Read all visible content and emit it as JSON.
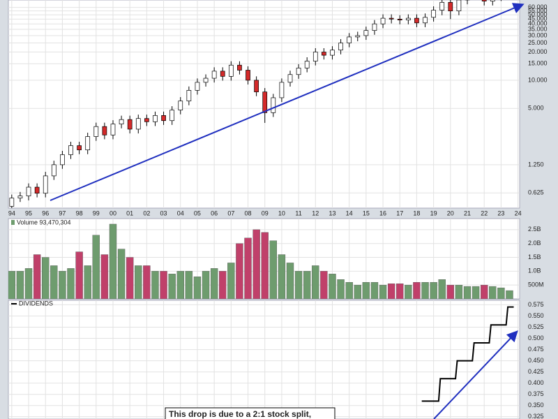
{
  "chart_data": [
    {
      "type": "candlestick",
      "log_scale": true,
      "grid": true,
      "up_color": "#ffffff",
      "down_color": "#d42a2a",
      "x": [
        1994.0,
        1994.5,
        1995.0,
        1995.5,
        1996.0,
        1996.5,
        1997.0,
        1997.5,
        1998.0,
        1998.5,
        1999.0,
        1999.5,
        2000.0,
        2000.5,
        2001.0,
        2001.5,
        2002.0,
        2002.5,
        2003.0,
        2003.5,
        2004.0,
        2004.5,
        2005.0,
        2005.5,
        2006.0,
        2006.5,
        2007.0,
        2007.5,
        2008.0,
        2008.5,
        2009.0,
        2009.5,
        2010.0,
        2010.5,
        2011.0,
        2011.5,
        2012.0,
        2012.5,
        2013.0,
        2013.5,
        2014.0,
        2014.5,
        2015.0,
        2015.5,
        2016.0,
        2016.5,
        2017.0,
        2017.5,
        2018.0,
        2018.5,
        2019.0,
        2019.5,
        2020.0,
        2020.5,
        2021.0,
        2021.5,
        2022.0,
        2022.5,
        2023.0,
        2023.5
      ],
      "open": [
        0.45,
        0.55,
        0.58,
        0.72,
        0.62,
        0.95,
        1.25,
        1.6,
        2.0,
        1.8,
        2.5,
        3.2,
        2.6,
        3.4,
        3.8,
        3.0,
        3.9,
        3.6,
        4.2,
        3.7,
        4.8,
        6.0,
        7.8,
        9.5,
        10.5,
        12.5,
        11.0,
        14.5,
        12.8,
        10.0,
        7.5,
        4.5,
        6.5,
        9.5,
        11.5,
        13.5,
        16.0,
        20.0,
        18.5,
        21.0,
        25.0,
        29.0,
        30.0,
        34.0,
        40.0,
        46.0,
        45.0,
        44.0,
        46.0,
        41.0,
        47.0,
        56.0,
        68.0,
        55.0,
        72.0,
        80,
        85,
        70,
        78,
        85
      ],
      "high": [
        0.6,
        0.64,
        0.79,
        0.79,
        1.05,
        1.38,
        1.76,
        2.2,
        2.2,
        2.75,
        3.52,
        3.52,
        3.74,
        4.18,
        4.18,
        4.29,
        4.29,
        4.62,
        4.62,
        5.28,
        6.6,
        8.58,
        10.45,
        11.55,
        13.75,
        13.75,
        15.95,
        15.95,
        14.08,
        11.0,
        8.25,
        7.15,
        10.45,
        12.65,
        14.85,
        17.6,
        22.0,
        22.0,
        23.1,
        27.5,
        31.9,
        33.0,
        37.4,
        44.0,
        50.6,
        50.6,
        49.5,
        50.6,
        50.6,
        51.7,
        61.6,
        74.8,
        74.8,
        79.2,
        88,
        93.5,
        93.5,
        85.8,
        93.5,
        99
      ],
      "low": [
        0.41,
        0.5,
        0.52,
        0.56,
        0.56,
        0.86,
        1.13,
        1.44,
        1.62,
        1.62,
        2.25,
        2.34,
        2.34,
        3.06,
        2.7,
        2.7,
        3.24,
        3.24,
        3.33,
        3.33,
        4.32,
        5.4,
        7.02,
        8.55,
        9.45,
        9.9,
        9.9,
        11.52,
        9.0,
        6.75,
        3.5,
        4.05,
        5.85,
        8.55,
        10.35,
        12.15,
        14.4,
        16.65,
        16.65,
        18.9,
        22.5,
        26.1,
        27.0,
        30.6,
        36.0,
        40.5,
        39.6,
        39.6,
        36.9,
        36.9,
        42.3,
        49.5,
        45,
        49.5,
        64.8,
        72,
        63,
        63,
        70.2,
        76.5
      ],
      "close": [
        0.55,
        0.58,
        0.72,
        0.62,
        0.95,
        1.25,
        1.6,
        2.0,
        1.8,
        2.5,
        3.2,
        2.6,
        3.4,
        3.8,
        3.0,
        3.9,
        3.6,
        4.2,
        3.7,
        4.8,
        6.0,
        7.8,
        9.5,
        10.5,
        12.5,
        11.0,
        14.5,
        12.8,
        10.0,
        7.5,
        4.5,
        6.5,
        9.5,
        11.5,
        13.5,
        16.0,
        20.0,
        18.5,
        21.0,
        25.0,
        29.0,
        30.0,
        34.0,
        40.0,
        46.0,
        45.0,
        44.0,
        46.0,
        41.0,
        47.0,
        56.0,
        68.0,
        55.0,
        72.0,
        80,
        85,
        70,
        78,
        85,
        90
      ],
      "xlim": [
        1993.8,
        2024.1
      ],
      "ylim": [
        0.43,
        72
      ],
      "xticks": [
        {
          "value": 1994,
          "label": "94"
        },
        {
          "value": 1995,
          "label": "95"
        },
        {
          "value": 1996,
          "label": "96"
        },
        {
          "value": 1997,
          "label": "97"
        },
        {
          "value": 1998,
          "label": "98"
        },
        {
          "value": 1999,
          "label": "99"
        },
        {
          "value": 2000,
          "label": "00"
        },
        {
          "value": 2001,
          "label": "01"
        },
        {
          "value": 2002,
          "label": "02"
        },
        {
          "value": 2003,
          "label": "03"
        },
        {
          "value": 2004,
          "label": "04"
        },
        {
          "value": 2005,
          "label": "05"
        },
        {
          "value": 2006,
          "label": "06"
        },
        {
          "value": 2007,
          "label": "07"
        },
        {
          "value": 2008,
          "label": "08"
        },
        {
          "value": 2009,
          "label": "09"
        },
        {
          "value": 2010,
          "label": "10"
        },
        {
          "value": 2011,
          "label": "11"
        },
        {
          "value": 2012,
          "label": "12"
        },
        {
          "value": 2013,
          "label": "13"
        },
        {
          "value": 2014,
          "label": "14"
        },
        {
          "value": 2015,
          "label": "15"
        },
        {
          "value": 2016,
          "label": "16"
        },
        {
          "value": 2017,
          "label": "17"
        },
        {
          "value": 2018,
          "label": "18"
        },
        {
          "value": 2019,
          "label": "19"
        },
        {
          "value": 2020,
          "label": "20"
        },
        {
          "value": 2021,
          "label": "21"
        },
        {
          "value": 2022,
          "label": "22"
        },
        {
          "value": 2023,
          "label": "23"
        },
        {
          "value": 2024,
          "label": "24"
        }
      ],
      "yticks": [
        0.625,
        {
          "value": 1.25,
          "label": "1.250"
        },
        {
          "value": 5,
          "label": "5.000"
        },
        {
          "value": 10,
          "label": "10.000"
        },
        {
          "value": 15,
          "label": "15.000"
        },
        {
          "value": 20,
          "label": "20.000"
        },
        {
          "value": 25,
          "label": "25.000"
        },
        {
          "value": 30,
          "label": "30.000"
        },
        {
          "value": 35,
          "label": "35.000"
        },
        {
          "value": 40,
          "label": "40.000"
        },
        {
          "value": 45,
          "label": "45.000"
        },
        {
          "value": 50,
          "label": "50.000"
        },
        {
          "value": 55,
          "label": "55.000"
        },
        {
          "value": 60,
          "label": "60.000"
        }
      ]
    },
    {
      "type": "bar",
      "title": "Volume 93,470,304",
      "grid": true,
      "up_color": "#6e9c6e",
      "down_color": "#c0406a",
      "x": [
        1994.0,
        1994.5,
        1995.0,
        1995.5,
        1996.0,
        1996.5,
        1997.0,
        1997.5,
        1998.0,
        1998.5,
        1999.0,
        1999.5,
        2000.0,
        2000.5,
        2001.0,
        2001.5,
        2002.0,
        2002.5,
        2003.0,
        2003.5,
        2004.0,
        2004.5,
        2005.0,
        2005.5,
        2006.0,
        2006.5,
        2007.0,
        2007.5,
        2008.0,
        2008.5,
        2009.0,
        2009.5,
        2010.0,
        2010.5,
        2011.0,
        2011.5,
        2012.0,
        2012.5,
        2013.0,
        2013.5,
        2014.0,
        2014.5,
        2015.0,
        2015.5,
        2016.0,
        2016.5,
        2017.0,
        2017.5,
        2018.0,
        2018.5,
        2019.0,
        2019.5,
        2020.0,
        2020.5,
        2021.0,
        2021.5,
        2022.0,
        2022.5,
        2023.0,
        2023.5
      ],
      "values": [
        1000000000,
        1000000000,
        1100000000,
        1600000000,
        1500000000,
        1200000000,
        1000000000,
        1100000000,
        1700000000,
        1200000000,
        2300000000,
        1600000000,
        2700000000,
        1800000000,
        1500000000,
        1200000000,
        1200000000,
        1000000000,
        1000000000,
        900000000,
        1000000000,
        1000000000,
        800000000,
        1000000000,
        1100000000,
        1000000000,
        1300000000,
        2000000000,
        2200000000,
        2500000000,
        2400000000,
        2100000000,
        1600000000,
        1300000000,
        1000000000,
        1000000000,
        1200000000,
        1000000000,
        900000000,
        700000000,
        600000000,
        500000000,
        600000000,
        600000000,
        500000000,
        550000000,
        550000000,
        500000000,
        600000000,
        600000000,
        600000000,
        700000000,
        500000000,
        500000000,
        450000000,
        450000000,
        500000000,
        450000000,
        400000000,
        300000000
      ],
      "xlim": [
        1993.8,
        2024.1
      ],
      "ylim": [
        0,
        2900000000
      ],
      "yticks": [
        {
          "value": 500000000,
          "label": "500M"
        },
        {
          "value": 1000000000,
          "label": "1.0B"
        },
        {
          "value": 1500000000,
          "label": "1.5B"
        },
        {
          "value": 2000000000,
          "label": "2.0B"
        },
        {
          "value": 2500000000,
          "label": "2.5B"
        }
      ]
    },
    {
      "type": "line",
      "title": "DIVIDENDS",
      "grid": true,
      "color": "#000000",
      "annotation": "This drop is due to a 2:1 stock split,",
      "x": [
        2018.3,
        2019.3,
        2019.4,
        2020.3,
        2020.4,
        2021.3,
        2021.4,
        2022.3,
        2022.4,
        2023.3,
        2023.4,
        2023.75
      ],
      "values": [
        0.36,
        0.36,
        0.41,
        0.41,
        0.45,
        0.45,
        0.49,
        0.49,
        0.53,
        0.53,
        0.57,
        0.57
      ],
      "xlim": [
        1993.8,
        2024.1
      ],
      "ylim": [
        0.32,
        0.585
      ],
      "yticks": [
        0.325,
        {
          "value": 0.35,
          "label": "0.350"
        },
        0.375,
        {
          "value": 0.4,
          "label": "0.400"
        },
        0.425,
        {
          "value": 0.45,
          "label": "0.450"
        },
        0.475,
        {
          "value": 0.5,
          "label": "0.500"
        },
        0.525,
        {
          "value": 0.55,
          "label": "0.550"
        },
        0.575
      ]
    }
  ]
}
